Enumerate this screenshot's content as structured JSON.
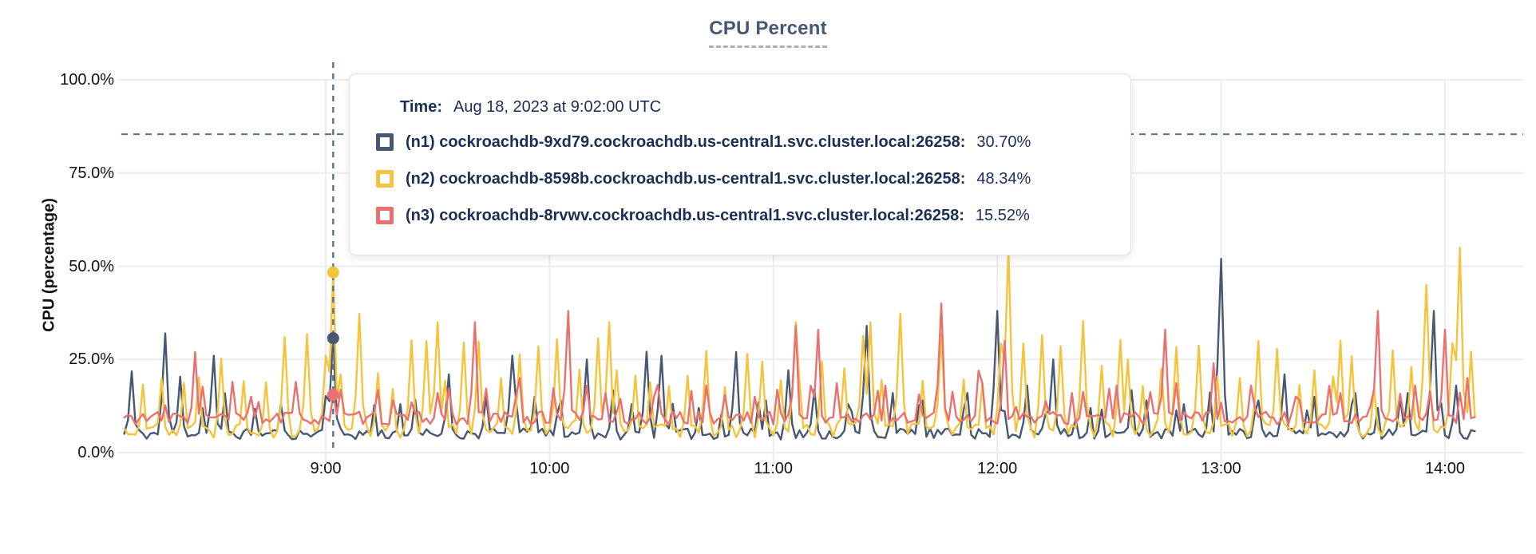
{
  "colors": {
    "series_n1": "#475872",
    "series_n2": "#f5c33c",
    "series_n3": "#e9716f",
    "grid": "#ececec",
    "dashed_guide": "#5a7086",
    "title": "#475872",
    "tooltip_text": "#1b2e55",
    "tick_text": "#111111"
  },
  "chart": {
    "tooltip": {
      "time_label": "Time:",
      "time_value": "Aug 18, 2023 at 9:02:00 UTC",
      "rows": [
        {
          "label": "(n1) cockroachdb-9xd79.cockroachdb.us-central1.svc.cluster.local:26258:",
          "value": "30.70%"
        },
        {
          "label": "(n2) cockroachdb-8598b.cockroachdb.us-central1.svc.cluster.local:26258:",
          "value": "48.34%"
        },
        {
          "label": "(n3) cockroachdb-8rvwv.cockroachdb.us-central1.svc.cluster.local:26258:",
          "value": "15.52%"
        }
      ]
    }
  },
  "chart_data": {
    "type": "line",
    "title": "CPU Percent",
    "xlabel": "",
    "ylabel": "CPU (percentage)",
    "ylim": [
      0,
      100
    ],
    "grid": true,
    "legend_position": "tooltip-overlay",
    "y_tick_values": [
      100,
      75,
      50,
      25,
      0
    ],
    "y_tick_labels": [
      "100.0%",
      "75.0%",
      "50.0%",
      "25.0%",
      "0.0%"
    ],
    "x_tick_labels": [
      "9:00",
      "10:00",
      "11:00",
      "12:00",
      "13:00",
      "14:00"
    ],
    "x_tick_minutes": [
      540,
      600,
      660,
      720,
      780,
      840
    ],
    "time_start_minute": 486,
    "time_end_minute": 848,
    "threshold_line_percent": 85.4,
    "hover": {
      "minute": 542,
      "time_label": "9:02:00 UTC",
      "values": [
        30.7,
        48.34,
        15.52
      ]
    },
    "series": [
      {
        "name": "(n1) cockroachdb-9xd79.cockroachdb.us-central1.svc.cluster.local:26258",
        "color": "#475872",
        "seed": 11,
        "baseline": [
          3.5,
          6.5
        ],
        "spike_period": [
          6,
          14
        ],
        "spike_height": [
          9,
          17
        ],
        "big_spike_chance": 0.05,
        "big_spike_height": [
          20,
          28
        ],
        "anchors": [
          [
            497,
            32
          ],
          [
            510,
            26
          ],
          [
            528,
            13
          ],
          [
            542,
            30.7
          ],
          [
            560,
            13
          ],
          [
            573,
            21
          ],
          [
            583,
            15
          ],
          [
            590,
            26
          ],
          [
            596,
            15
          ],
          [
            603,
            14
          ],
          [
            610,
            25
          ],
          [
            622,
            13
          ],
          [
            630,
            26
          ],
          [
            640,
            12
          ],
          [
            650,
            27
          ],
          [
            658,
            14
          ],
          [
            671,
            17
          ],
          [
            680,
            13
          ],
          [
            685,
            34
          ],
          [
            692,
            16
          ],
          [
            700,
            14
          ],
          [
            712,
            16
          ],
          [
            720,
            38
          ],
          [
            728,
            18
          ],
          [
            735,
            25
          ],
          [
            745,
            12
          ],
          [
            760,
            14
          ],
          [
            770,
            13
          ],
          [
            780,
            52
          ],
          [
            790,
            14
          ],
          [
            797,
            21
          ],
          [
            805,
            15
          ],
          [
            815,
            13
          ],
          [
            822,
            12
          ],
          [
            830,
            16
          ],
          [
            837,
            38
          ],
          [
            843,
            18
          ]
        ]
      },
      {
        "name": "(n2) cockroachdb-8598b.cockroachdb.us-central1.svc.cluster.local:26258",
        "color": "#f5c33c",
        "seed": 22,
        "baseline": [
          4,
          8
        ],
        "spike_period": [
          4,
          6
        ],
        "spike_height": [
          17,
          32
        ],
        "big_spike_chance": 0.05,
        "big_spike_height": [
          35,
          44
        ],
        "anchors": [
          [
            542,
            48.34
          ],
          [
            570,
            35
          ],
          [
            616,
            35
          ],
          [
            666,
            35
          ],
          [
            686,
            35
          ],
          [
            723,
            55
          ],
          [
            755,
            25
          ],
          [
            790,
            30
          ],
          [
            812,
            30
          ],
          [
            835,
            45
          ],
          [
            844,
            55
          ]
        ]
      },
      {
        "name": "(n3) cockroachdb-8rvwv.cockroachdb.us-central1.svc.cluster.local:26258",
        "color": "#e9716f",
        "seed": 33,
        "baseline": [
          7.5,
          11
        ],
        "spike_period": [
          6,
          12
        ],
        "spike_height": [
          12,
          19
        ],
        "big_spike_chance": 0.07,
        "big_spike_height": [
          24,
          34
        ],
        "anchors": [
          [
            505,
            27
          ],
          [
            520,
            15
          ],
          [
            542,
            15.52
          ],
          [
            558,
            14
          ],
          [
            570,
            16
          ],
          [
            580,
            35
          ],
          [
            592,
            20
          ],
          [
            605,
            38
          ],
          [
            615,
            16
          ],
          [
            628,
            15
          ],
          [
            642,
            18
          ],
          [
            655,
            15
          ],
          [
            666,
            34
          ],
          [
            672,
            33
          ],
          [
            690,
            18
          ],
          [
            705,
            40
          ],
          [
            715,
            22
          ],
          [
            722,
            30
          ],
          [
            740,
            16
          ],
          [
            752,
            18
          ],
          [
            765,
            33
          ],
          [
            778,
            24
          ],
          [
            788,
            18
          ],
          [
            800,
            15
          ],
          [
            812,
            16
          ],
          [
            822,
            38
          ],
          [
            832,
            18
          ],
          [
            840,
            33
          ],
          [
            846,
            20
          ]
        ]
      }
    ]
  }
}
